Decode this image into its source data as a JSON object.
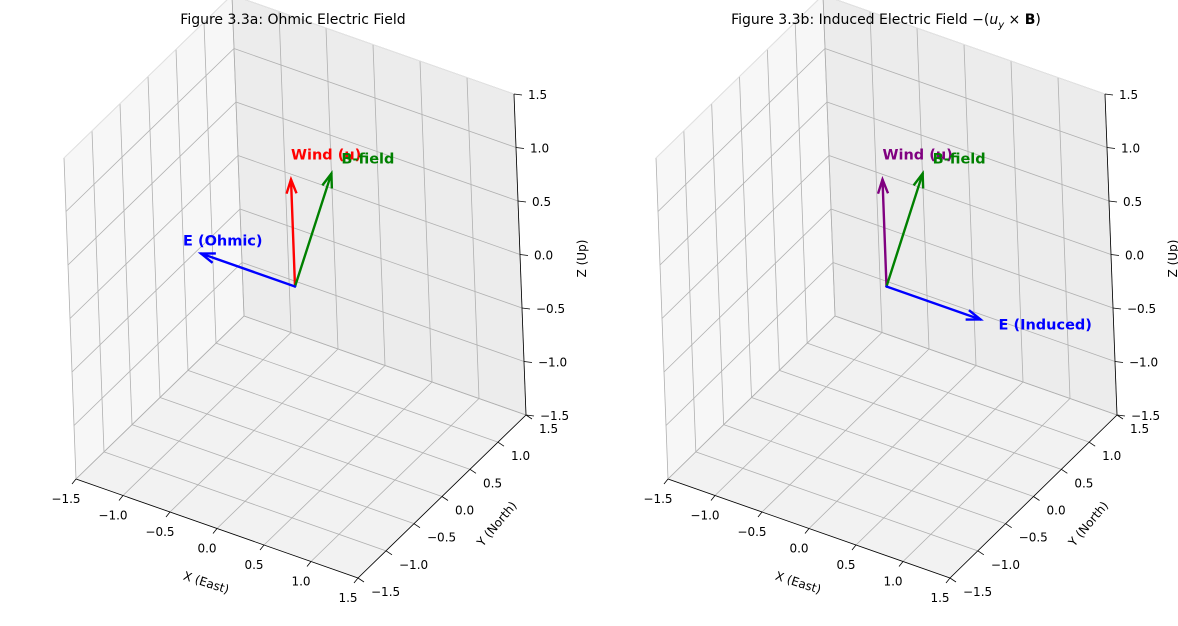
{
  "chart_data": [
    {
      "type": "3d-quiver",
      "title": "Figure 3.3a: Ohmic Electric Field",
      "xlabel": "X (East)",
      "ylabel": "Y (North)",
      "zlabel": "Z (Up)",
      "xlim": [
        -1.5,
        1.5
      ],
      "ylim": [
        -1.5,
        1.5
      ],
      "zlim": [
        -1.5,
        1.5
      ],
      "ticks": [
        -1.5,
        -1.0,
        -0.5,
        0.0,
        0.5,
        1.0,
        1.5
      ],
      "tick_labels": [
        "−1.5",
        "−1.0",
        "−0.5",
        "0.0",
        "0.5",
        "1.0",
        "1.5"
      ],
      "grid": true,
      "vectors": [
        {
          "name": "Wind (u)",
          "origin": [
            0,
            0,
            0
          ],
          "vector": [
            0,
            0,
            1
          ],
          "color": "#ff0000"
        },
        {
          "name": "B-field",
          "origin": [
            0,
            0,
            0
          ],
          "vector": [
            0,
            0.7,
            0.7
          ],
          "color": "#008000"
        },
        {
          "name": "E (Ohmic)",
          "origin": [
            0,
            0,
            0
          ],
          "vector": [
            -1,
            0,
            0
          ],
          "color": "#0000ff"
        }
      ]
    },
    {
      "type": "3d-quiver",
      "title_parts": {
        "prefix": "Figure 3.3b: Induced Electric Field ",
        "minus": "−",
        "open": "(",
        "u": "u",
        "sub": "y",
        "times": " × ",
        "B": "B",
        "close": ")"
      },
      "xlabel": "X (East)",
      "ylabel": "Y (North)",
      "zlabel": "Z (Up)",
      "xlim": [
        -1.5,
        1.5
      ],
      "ylim": [
        -1.5,
        1.5
      ],
      "zlim": [
        -1.5,
        1.5
      ],
      "ticks": [
        -1.5,
        -1.0,
        -0.5,
        0.0,
        0.5,
        1.0,
        1.5
      ],
      "tick_labels": [
        "−1.5",
        "−1.0",
        "−0.5",
        "0.0",
        "0.5",
        "1.0",
        "1.5"
      ],
      "grid": true,
      "vectors": [
        {
          "name": "Wind (u)",
          "origin": [
            0,
            0,
            0
          ],
          "vector": [
            0,
            0,
            1
          ],
          "color": "#800080"
        },
        {
          "name": "B-field",
          "origin": [
            0,
            0,
            0
          ],
          "vector": [
            0,
            0.7,
            0.7
          ],
          "color": "#008000"
        },
        {
          "name": "E (Induced)",
          "origin": [
            0,
            0,
            0
          ],
          "vector": [
            1,
            0,
            0
          ],
          "color": "#0000ff"
        }
      ]
    }
  ]
}
